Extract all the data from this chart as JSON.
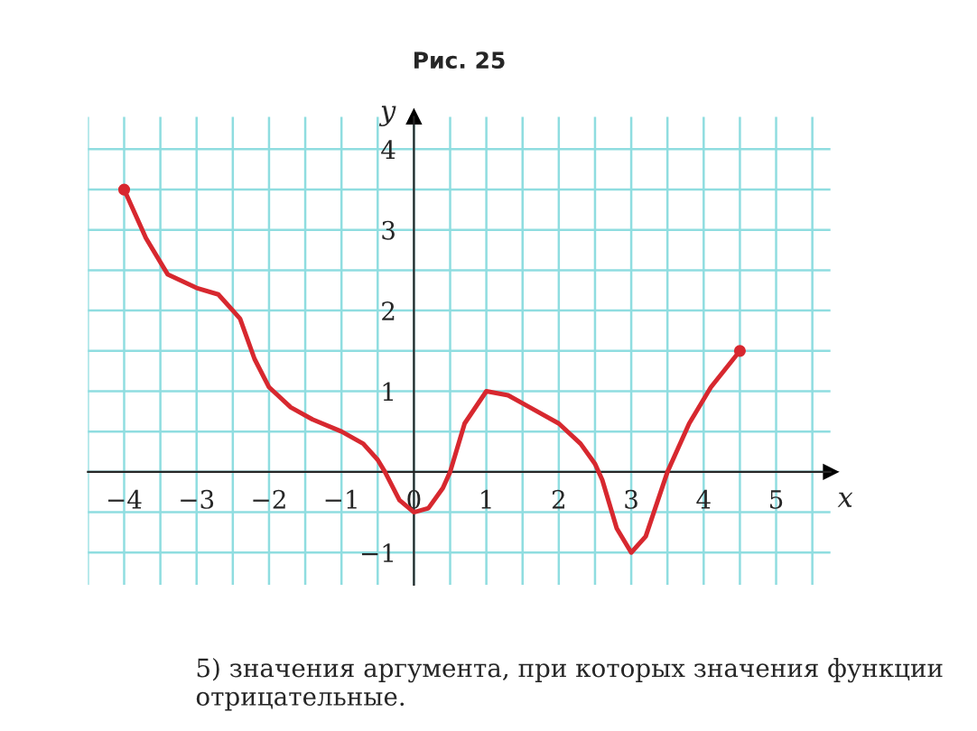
{
  "chart_data": {
    "type": "line",
    "title": "Рис. 25",
    "xlabel": "x",
    "ylabel": "y",
    "annotations": [
      "5) значения аргумента, при которых значения функции отрицательные."
    ],
    "xlim": [
      -4.5,
      5.75
    ],
    "ylim": [
      -1.4,
      4.4
    ],
    "xticks": [
      {
        "value": -4,
        "label": "−4"
      },
      {
        "value": -3,
        "label": "−3"
      },
      {
        "value": -2,
        "label": "−2"
      },
      {
        "value": -1,
        "label": "−1"
      },
      0,
      1,
      2,
      3,
      4,
      5
    ],
    "yticks": [
      {
        "value": -1,
        "label": "−1"
      },
      1,
      2,
      3,
      4
    ],
    "grid": true,
    "series": [
      {
        "color": "#d7282f",
        "x": [
          -4,
          -3.7,
          -3.4,
          -3,
          -2.7,
          -2.4,
          -2.2,
          -2,
          -1.7,
          -1.4,
          -1,
          -0.7,
          -0.5,
          -0.4,
          -0.2,
          0,
          0.2,
          0.4,
          0.5,
          0.7,
          1,
          1.3,
          1.6,
          2,
          2.3,
          2.5,
          2.6,
          2.8,
          3,
          3.2,
          3.5,
          3.8,
          4.1,
          4.5
        ],
        "values": [
          3.5,
          2.9,
          2.45,
          2.28,
          2.2,
          1.9,
          1.4,
          1.05,
          0.8,
          0.65,
          0.5,
          0.35,
          0.15,
          0,
          -0.35,
          -0.5,
          -0.45,
          -0.2,
          0,
          0.6,
          1,
          0.95,
          0.8,
          0.6,
          0.35,
          0.1,
          -0.1,
          -0.7,
          -1,
          -0.8,
          0,
          0.6,
          1.05,
          1.5
        ]
      },
      {
        "type": "scatter",
        "color": "#d7282f",
        "x": [
          -4,
          4.5
        ],
        "values": [
          3.5,
          1.5
        ]
      }
    ]
  }
}
